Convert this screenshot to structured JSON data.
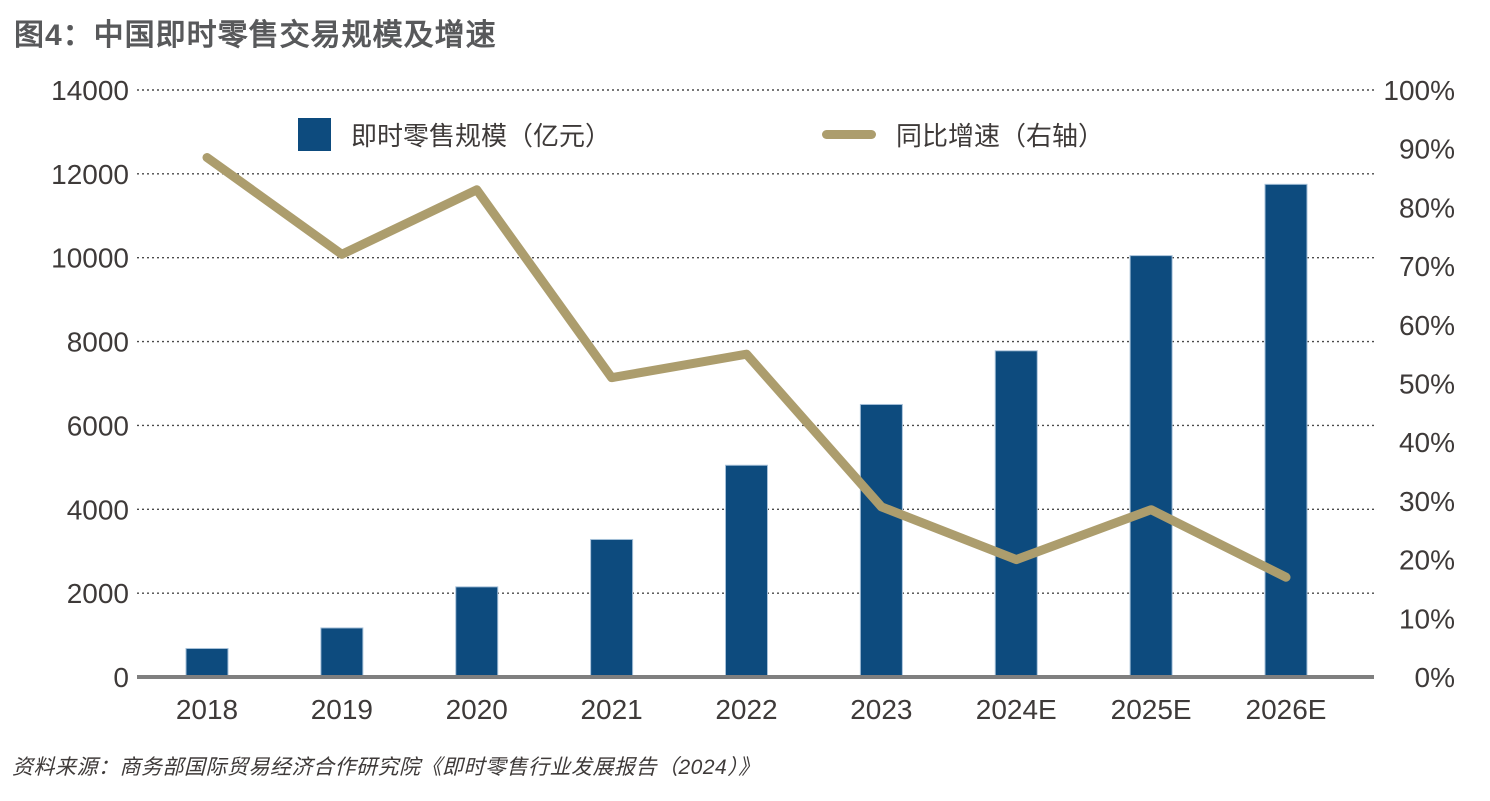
{
  "title": "图4：中国即时零售交易规模及增速",
  "source": "资料来源：商务部国际贸易经济合作研究院《即时零售行业发展报告（2024）》",
  "legend": {
    "bar_label": "即时零售规模（亿元）",
    "line_label": "同比增速（右轴）"
  },
  "colors": {
    "bar": "#0D4B7E",
    "bar_edge": "#A7C1D9",
    "line": "#AC9D6D",
    "title": "#58595B",
    "tick_text": "#3E3A39",
    "gridline": "#4A4A4A",
    "baseline": "#7F7F7F"
  },
  "chart_data": {
    "type": "bar",
    "subtype": "bar+line combo, dual axis",
    "title": "图4：中国即时零售交易规模及增速",
    "categories": [
      "2018",
      "2019",
      "2020",
      "2021",
      "2022",
      "2023",
      "2024E",
      "2025E",
      "2026E"
    ],
    "series": [
      {
        "name": "即时零售规模（亿元）",
        "type": "bar",
        "axis": "left",
        "color": "#0D4B7E",
        "values": [
          680,
          1170,
          2150,
          3280,
          5050,
          6500,
          7780,
          10050,
          11750
        ]
      },
      {
        "name": "同比增速（右轴）",
        "type": "line",
        "axis": "right",
        "color": "#AC9D6D",
        "values": [
          88.5,
          72,
          83,
          51,
          55,
          29,
          20,
          28.5,
          17
        ]
      }
    ],
    "left_axis": {
      "min": 0,
      "max": 14000,
      "step": 2000,
      "ticks": [
        "0",
        "2000",
        "4000",
        "6000",
        "8000",
        "10000",
        "12000",
        "14000"
      ]
    },
    "right_axis": {
      "min": 0,
      "max": 100,
      "step": 10,
      "ticks": [
        "0%",
        "10%",
        "20%",
        "30%",
        "40%",
        "50%",
        "60%",
        "70%",
        "80%",
        "90%",
        "100%"
      ]
    },
    "grid": "horizontal dotted lines at left-axis steps",
    "legend_position": "top inside plot",
    "source": "资料来源：商务部国际贸易经济合作研究院《即时零售行业发展报告（2024）》"
  }
}
